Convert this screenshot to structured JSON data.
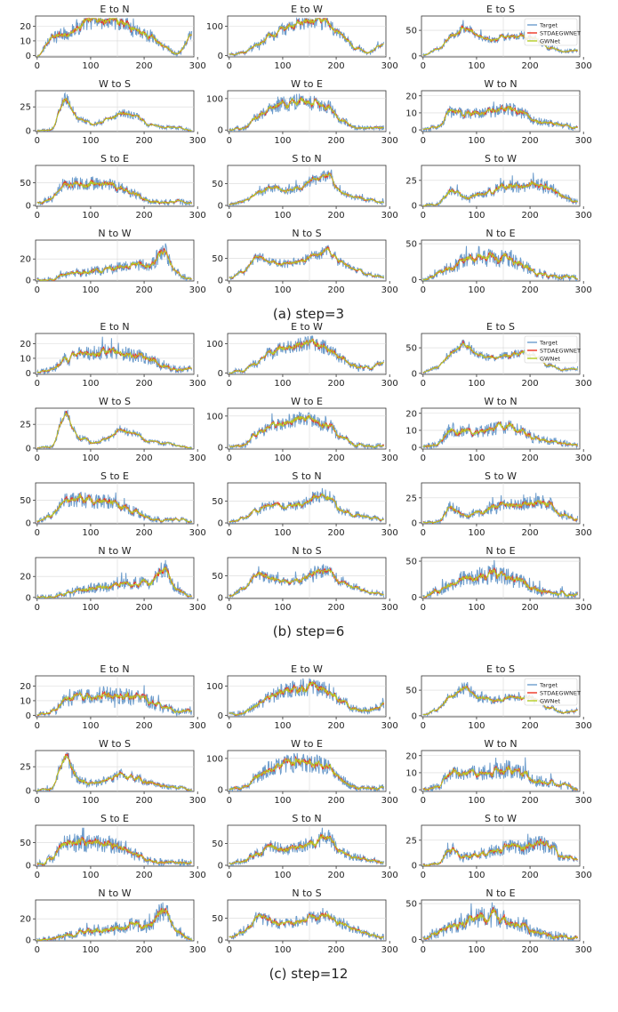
{
  "chart_data": {
    "type": "line",
    "x_range": [
      -3,
      293
    ],
    "x_ticks": [
      0,
      100,
      200,
      300
    ],
    "legend": {
      "placement": "top-right",
      "entries": [
        {
          "name": "Target",
          "color": "#6c9ccc"
        },
        {
          "name": "STDAEGWNET",
          "color": "#ee3322"
        },
        {
          "name": "GWNet",
          "color": "#b5cc22"
        }
      ]
    },
    "series_shape_note_free": true,
    "panel_titles": [
      "E to N",
      "E to W",
      "E to S",
      "W to S",
      "W to E",
      "W to N",
      "S to E",
      "S to N",
      "S to W",
      "N to W",
      "N to S",
      "N to E"
    ],
    "groups": [
      {
        "caption": "(a) step=3",
        "panels": [
          {
            "title": "E to N",
            "ylim": [
              -1,
              27
            ],
            "yticks": [
              0,
              10,
              20
            ],
            "peak_at": [
              0,
              0.5,
              0.62,
              0.8,
              1.0,
              0.97,
              0.98,
              0.72,
              0.56,
              0.28,
              0.08,
              0.55
            ],
            "noise": 0.22
          },
          {
            "title": "E to W",
            "ylim": [
              -5,
              135
            ],
            "yticks": [
              0,
              100
            ],
            "peak_at": [
              0.05,
              0.12,
              0.3,
              0.55,
              0.75,
              0.9,
              0.95,
              0.88,
              0.55,
              0.25,
              0.12,
              0.35
            ],
            "noise": 0.18
          },
          {
            "title": "E to S",
            "ylim": [
              -2,
              78
            ],
            "yticks": [
              0,
              50
            ],
            "peak_at": [
              0.04,
              0.2,
              0.55,
              0.78,
              0.5,
              0.46,
              0.52,
              0.58,
              0.44,
              0.24,
              0.14,
              0.18
            ],
            "noise": 0.14
          },
          {
            "title": "W to S",
            "ylim": [
              -1,
              42
            ],
            "yticks": [
              0,
              25
            ],
            "peak_at": [
              0.02,
              0.05,
              0.88,
              0.32,
              0.2,
              0.3,
              0.5,
              0.42,
              0.18,
              0.12,
              0.1,
              0.02
            ],
            "noise": 0.15
          },
          {
            "title": "W to E",
            "ylim": [
              -5,
              125
            ],
            "yticks": [
              0,
              100
            ],
            "peak_at": [
              0.04,
              0.1,
              0.4,
              0.62,
              0.75,
              0.8,
              0.76,
              0.68,
              0.3,
              0.1,
              0.08,
              0.1
            ],
            "noise": 0.2
          },
          {
            "title": "W to N",
            "ylim": [
              -1,
              23
            ],
            "yticks": [
              0,
              10,
              20
            ],
            "peak_at": [
              0.04,
              0.12,
              0.52,
              0.5,
              0.48,
              0.52,
              0.62,
              0.5,
              0.28,
              0.22,
              0.16,
              0.08
            ],
            "noise": 0.22
          },
          {
            "title": "S to E",
            "ylim": [
              -2,
              88
            ],
            "yticks": [
              0,
              50
            ],
            "peak_at": [
              0.06,
              0.2,
              0.62,
              0.62,
              0.6,
              0.58,
              0.5,
              0.32,
              0.14,
              0.1,
              0.12,
              0.08
            ],
            "noise": 0.22
          },
          {
            "title": "S to N",
            "ylim": [
              -2,
              92
            ],
            "yticks": [
              0,
              50
            ],
            "peak_at": [
              0.04,
              0.14,
              0.34,
              0.5,
              0.42,
              0.48,
              0.7,
              0.82,
              0.36,
              0.24,
              0.16,
              0.1
            ],
            "noise": 0.16
          },
          {
            "title": "S to W",
            "ylim": [
              -1,
              40
            ],
            "yticks": [
              0,
              25
            ],
            "peak_at": [
              0.02,
              0.04,
              0.42,
              0.24,
              0.3,
              0.42,
              0.56,
              0.5,
              0.6,
              0.52,
              0.24,
              0.12
            ],
            "noise": 0.22
          },
          {
            "title": "N to W",
            "ylim": [
              -1,
              38
            ],
            "yticks": [
              0,
              20
            ],
            "peak_at": [
              0.02,
              0.04,
              0.16,
              0.22,
              0.28,
              0.3,
              0.38,
              0.4,
              0.42,
              0.78,
              0.2,
              0.02
            ],
            "noise": 0.25
          },
          {
            "title": "N to S",
            "ylim": [
              -2,
              92
            ],
            "yticks": [
              0,
              50
            ],
            "peak_at": [
              0.08,
              0.24,
              0.62,
              0.5,
              0.46,
              0.52,
              0.68,
              0.78,
              0.46,
              0.3,
              0.16,
              0.1
            ],
            "noise": 0.16
          },
          {
            "title": "N to E",
            "ylim": [
              -2,
              55
            ],
            "yticks": [
              0,
              50
            ],
            "peak_at": [
              0.04,
              0.2,
              0.36,
              0.54,
              0.6,
              0.62,
              0.58,
              0.44,
              0.22,
              0.14,
              0.1,
              0.08
            ],
            "noise": 0.28
          }
        ]
      },
      {
        "caption": "(b) step=6",
        "panels": [
          {
            "title": "E to N",
            "ylim": [
              -1,
              27
            ],
            "yticks": [
              0,
              10,
              20
            ],
            "peak_at": [
              0.04,
              0.12,
              0.42,
              0.54,
              0.58,
              0.6,
              0.56,
              0.5,
              0.4,
              0.26,
              0.12,
              0.16
            ],
            "noise": 0.24
          },
          {
            "title": "E to W",
            "ylim": [
              -5,
              135
            ],
            "yticks": [
              0,
              100
            ],
            "peak_at": [
              0.05,
              0.1,
              0.3,
              0.56,
              0.72,
              0.78,
              0.82,
              0.7,
              0.42,
              0.22,
              0.16,
              0.34
            ],
            "noise": 0.2
          },
          {
            "title": "E to S",
            "ylim": [
              -2,
              78
            ],
            "yticks": [
              0,
              50
            ],
            "peak_at": [
              0.04,
              0.2,
              0.56,
              0.8,
              0.5,
              0.44,
              0.5,
              0.56,
              0.46,
              0.24,
              0.12,
              0.16
            ],
            "noise": 0.14
          },
          {
            "title": "W to S",
            "ylim": [
              -1,
              42
            ],
            "yticks": [
              0,
              25
            ],
            "peak_at": [
              0.02,
              0.05,
              0.9,
              0.3,
              0.18,
              0.28,
              0.52,
              0.4,
              0.2,
              0.14,
              0.1,
              0.02
            ],
            "noise": 0.16
          },
          {
            "title": "W to E",
            "ylim": [
              -5,
              125
            ],
            "yticks": [
              0,
              100
            ],
            "peak_at": [
              0.04,
              0.1,
              0.4,
              0.62,
              0.72,
              0.78,
              0.76,
              0.66,
              0.3,
              0.1,
              0.08,
              0.1
            ],
            "noise": 0.22
          },
          {
            "title": "W to N",
            "ylim": [
              -1,
              23
            ],
            "yticks": [
              0,
              10,
              20
            ],
            "peak_at": [
              0.04,
              0.12,
              0.52,
              0.5,
              0.48,
              0.52,
              0.62,
              0.5,
              0.28,
              0.22,
              0.16,
              0.08
            ],
            "noise": 0.24
          },
          {
            "title": "S to E",
            "ylim": [
              -2,
              88
            ],
            "yticks": [
              0,
              50
            ],
            "peak_at": [
              0.06,
              0.2,
              0.62,
              0.64,
              0.6,
              0.58,
              0.5,
              0.3,
              0.14,
              0.1,
              0.1,
              0.06
            ],
            "noise": 0.24
          },
          {
            "title": "S to N",
            "ylim": [
              -2,
              92
            ],
            "yticks": [
              0,
              50
            ],
            "peak_at": [
              0.04,
              0.14,
              0.34,
              0.52,
              0.44,
              0.5,
              0.7,
              0.8,
              0.36,
              0.24,
              0.16,
              0.1
            ],
            "noise": 0.18
          },
          {
            "title": "S to W",
            "ylim": [
              -1,
              40
            ],
            "yticks": [
              0,
              25
            ],
            "peak_at": [
              0.02,
              0.04,
              0.44,
              0.24,
              0.3,
              0.4,
              0.56,
              0.5,
              0.62,
              0.52,
              0.24,
              0.14
            ],
            "noise": 0.24
          },
          {
            "title": "N to W",
            "ylim": [
              -1,
              38
            ],
            "yticks": [
              0,
              20
            ],
            "peak_at": [
              0.02,
              0.04,
              0.14,
              0.22,
              0.28,
              0.3,
              0.36,
              0.42,
              0.4,
              0.8,
              0.22,
              0.04
            ],
            "noise": 0.26
          },
          {
            "title": "N to S",
            "ylim": [
              -2,
              92
            ],
            "yticks": [
              0,
              50
            ],
            "peak_at": [
              0.08,
              0.24,
              0.62,
              0.52,
              0.44,
              0.5,
              0.66,
              0.76,
              0.46,
              0.3,
              0.16,
              0.1
            ],
            "noise": 0.18
          },
          {
            "title": "N to E",
            "ylim": [
              -2,
              55
            ],
            "yticks": [
              0,
              50
            ],
            "peak_at": [
              0.04,
              0.2,
              0.36,
              0.54,
              0.6,
              0.62,
              0.56,
              0.44,
              0.22,
              0.14,
              0.1,
              0.08
            ],
            "noise": 0.3
          }
        ]
      },
      {
        "caption": "(c) step=12",
        "panels": [
          {
            "title": "E to N",
            "ylim": [
              -1,
              27
            ],
            "yticks": [
              0,
              10,
              20
            ],
            "peak_at": [
              0.04,
              0.12,
              0.42,
              0.54,
              0.56,
              0.6,
              0.56,
              0.5,
              0.4,
              0.26,
              0.12,
              0.16
            ],
            "noise": 0.28
          },
          {
            "title": "E to W",
            "ylim": [
              -5,
              135
            ],
            "yticks": [
              0,
              100
            ],
            "peak_at": [
              0.05,
              0.1,
              0.3,
              0.56,
              0.72,
              0.78,
              0.8,
              0.7,
              0.42,
              0.22,
              0.16,
              0.3
            ],
            "noise": 0.24
          },
          {
            "title": "E to S",
            "ylim": [
              -2,
              78
            ],
            "yticks": [
              0,
              50
            ],
            "peak_at": [
              0.04,
              0.2,
              0.56,
              0.78,
              0.5,
              0.44,
              0.5,
              0.54,
              0.44,
              0.24,
              0.12,
              0.16
            ],
            "noise": 0.16
          },
          {
            "title": "W to S",
            "ylim": [
              -1,
              42
            ],
            "yticks": [
              0,
              25
            ],
            "peak_at": [
              0.02,
              0.05,
              0.9,
              0.3,
              0.2,
              0.3,
              0.44,
              0.36,
              0.22,
              0.14,
              0.1,
              0.02
            ],
            "noise": 0.22
          },
          {
            "title": "W to E",
            "ylim": [
              -5,
              125
            ],
            "yticks": [
              0,
              100
            ],
            "peak_at": [
              0.04,
              0.1,
              0.4,
              0.62,
              0.72,
              0.78,
              0.74,
              0.66,
              0.3,
              0.1,
              0.08,
              0.1
            ],
            "noise": 0.26
          },
          {
            "title": "W to N",
            "ylim": [
              -1,
              23
            ],
            "yticks": [
              0,
              10,
              20
            ],
            "peak_at": [
              0.04,
              0.12,
              0.52,
              0.5,
              0.48,
              0.52,
              0.6,
              0.5,
              0.28,
              0.22,
              0.16,
              0.08
            ],
            "noise": 0.28
          },
          {
            "title": "S to E",
            "ylim": [
              -2,
              88
            ],
            "yticks": [
              0,
              50
            ],
            "peak_at": [
              0.06,
              0.2,
              0.62,
              0.62,
              0.6,
              0.58,
              0.5,
              0.3,
              0.14,
              0.1,
              0.1,
              0.06
            ],
            "noise": 0.28
          },
          {
            "title": "S to N",
            "ylim": [
              -2,
              92
            ],
            "yticks": [
              0,
              50
            ],
            "peak_at": [
              0.04,
              0.14,
              0.34,
              0.52,
              0.44,
              0.5,
              0.66,
              0.74,
              0.36,
              0.24,
              0.16,
              0.1
            ],
            "noise": 0.22
          },
          {
            "title": "S to W",
            "ylim": [
              -1,
              40
            ],
            "yticks": [
              0,
              25
            ],
            "peak_at": [
              0.02,
              0.04,
              0.44,
              0.24,
              0.3,
              0.4,
              0.5,
              0.46,
              0.62,
              0.52,
              0.24,
              0.14
            ],
            "noise": 0.28
          },
          {
            "title": "N to W",
            "ylim": [
              -1,
              38
            ],
            "yticks": [
              0,
              20
            ],
            "peak_at": [
              0.02,
              0.04,
              0.14,
              0.22,
              0.28,
              0.3,
              0.36,
              0.42,
              0.4,
              0.8,
              0.22,
              0.04
            ],
            "noise": 0.3
          },
          {
            "title": "N to S",
            "ylim": [
              -2,
              92
            ],
            "yticks": [
              0,
              50
            ],
            "peak_at": [
              0.08,
              0.24,
              0.62,
              0.52,
              0.44,
              0.5,
              0.62,
              0.7,
              0.46,
              0.3,
              0.16,
              0.1
            ],
            "noise": 0.22
          },
          {
            "title": "N to E",
            "ylim": [
              -2,
              55
            ],
            "yticks": [
              0,
              50
            ],
            "peak_at": [
              0.04,
              0.2,
              0.36,
              0.54,
              0.6,
              0.62,
              0.56,
              0.44,
              0.22,
              0.14,
              0.1,
              0.08
            ],
            "noise": 0.32
          }
        ]
      }
    ]
  }
}
